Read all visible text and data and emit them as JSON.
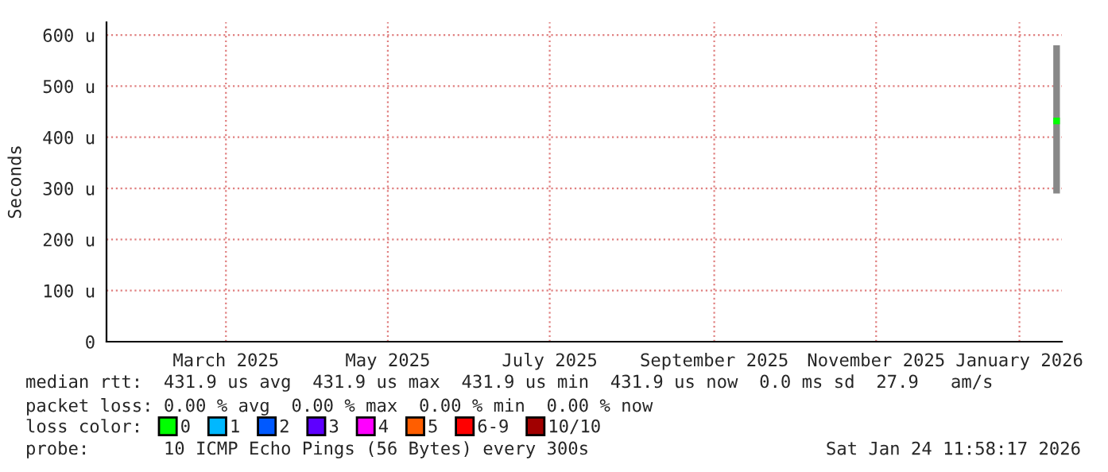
{
  "chart_data": {
    "type": "scatter",
    "ylabel": "Seconds",
    "x": [
      "2026-01-22"
    ],
    "series": [
      {
        "name": "0",
        "color": "#00ff00",
        "values": [
          431.9
        ],
        "errors": [
          [
            290,
            580
          ]
        ]
      },
      {
        "name": "1",
        "color": "#00b8ff",
        "values": [
          null
        ]
      },
      {
        "name": "2",
        "color": "#0059ff",
        "values": [
          null
        ]
      },
      {
        "name": "3",
        "color": "#5e00ff",
        "values": [
          null
        ]
      },
      {
        "name": "4",
        "color": "#ff00ff",
        "values": [
          null
        ]
      },
      {
        "name": "5",
        "color": "#ff5e00",
        "values": [
          null
        ]
      },
      {
        "name": "6-9",
        "color": "#ff0000",
        "values": [
          null
        ]
      },
      {
        "name": "10/10",
        "color": "#a10000",
        "values": [
          null
        ]
      }
    ],
    "legend_title": "loss color:",
    "legend": "bottom",
    "marker": "square",
    "grid": true,
    "ylim": [
      0,
      625
    ],
    "yticks": [
      0,
      {
        "value": 100,
        "label": "100 u"
      },
      {
        "value": 200,
        "label": "200 u"
      },
      {
        "value": 300,
        "label": "300 u"
      },
      {
        "value": 400,
        "label": "400 u"
      },
      {
        "value": 500,
        "label": "500 u"
      },
      {
        "value": 600,
        "label": "600 u"
      }
    ],
    "xlim": [
      "2025-01-29",
      "2026-01-24"
    ],
    "xticks": [
      {
        "value": "2025-03-15",
        "label": "March 2025"
      },
      {
        "value": "2025-05-15",
        "label": "May 2025"
      },
      {
        "value": "2025-07-15",
        "label": "July 2025"
      },
      {
        "value": "2025-09-15",
        "label": "September 2025"
      },
      {
        "value": "2025-11-15",
        "label": "November 2025"
      },
      {
        "value": "2026-01-08",
        "label": "January 2026"
      }
    ],
    "annotations": [
      "median rtt:  431.9 us avg  431.9 us max  431.9 us min  431.9 us now  0.0 ms sd  27.9   am/s",
      "packet loss: 0.00 % avg  0.00 % max  0.00 % min  0.00 % now",
      "probe:       10 ICMP Echo Pings (56 Bytes) every 300s",
      "Sat Jan 24 11:58:17 2026"
    ]
  }
}
